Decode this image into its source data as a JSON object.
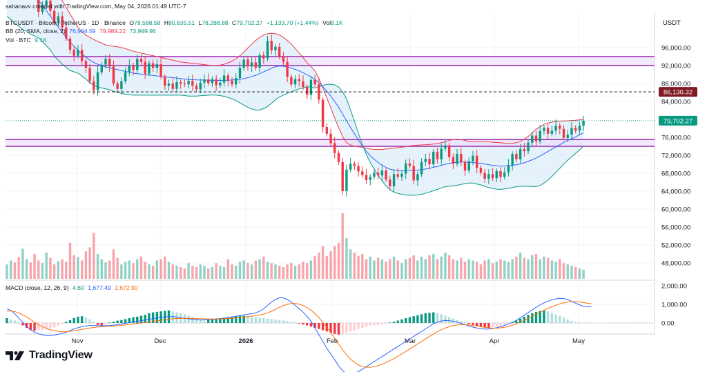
{
  "header": {
    "author_line": "sahanavv created with TradingView.com, May 04, 2026 01:49 UTC-7",
    "symbol": "BTCUSDT · Bitcoin / TetherUS · 1D · Binance",
    "o_label": "O",
    "o_value": "78,568.58",
    "h_label": "H",
    "h_value": "80,635.51",
    "l_label": "L",
    "l_value": "78,288.88",
    "c_label": "C",
    "c_value": "79,702.27",
    "change": "+1,133.70 (+1.44%)",
    "vol_label": "Vol",
    "vol_value": "9.1K",
    "bb_label": "BB (20, SMA, close, 2)",
    "bb_basis": "76,994.59",
    "bb_upper": "79,989.22",
    "bb_lower": "73,999.96",
    "vol_line_label": "Vol · BTC",
    "vol_line_value": "9.1K",
    "macd_label": "MACD (close, 12, 26, 9)",
    "macd_hist": "4.60",
    "macd_line": "1,677.49",
    "macd_signal": "1,672.90"
  },
  "axis_title": "USDT",
  "brand": "TradingView",
  "colors": {
    "up": "#089981",
    "down": "#f23645",
    "bb_basis": "#2962ff",
    "bb_band": "#f23645",
    "bb_lower": "#089981",
    "bb_fill": "#dceefa",
    "zone_fill": "#ede0fb",
    "zone_line": "#9c27b0",
    "macd_line": "#2962ff",
    "signal_line": "#ff6d00",
    "last_price_bg": "#089981",
    "alert_bg": "#801922"
  },
  "chart_data": {
    "type": "candlestick",
    "price_axis": {
      "ticks": [
        96000,
        92000,
        88000,
        84000,
        76000,
        72000,
        68000,
        64000,
        60000,
        56000,
        52000,
        48000
      ],
      "labels": [
        "96,000.00",
        "92,000.00",
        "88,000.00",
        "84,000.00",
        "76,000.00",
        "72,000.00",
        "68,000.00",
        "64,000.00",
        "60,000.00",
        "56,000.00",
        "52,000.00",
        "48,000.00"
      ]
    },
    "macd_axis": {
      "ticks": [
        2000,
        1000,
        0
      ],
      "labels": [
        "2,000.00",
        "1,000.00",
        "0.00"
      ]
    },
    "x_axis": {
      "labels": [
        "Nov",
        "Dec",
        "2026",
        "Feb",
        "Mar",
        "Apr",
        "May"
      ],
      "bold": [
        false,
        false,
        true,
        false,
        false,
        false,
        false
      ]
    },
    "price_markers": [
      {
        "value": 86130.32,
        "label": "86,130.32",
        "style": "dashed",
        "kind": "alert"
      },
      {
        "value": 79702.27,
        "label": "79,702.27",
        "style": "dotted",
        "kind": "last"
      }
    ],
    "zones": [
      {
        "from": 92000,
        "to": 94000
      },
      {
        "from": 74000,
        "to": 75500
      }
    ],
    "closes": [
      111000,
      112500,
      110000,
      108000,
      109500,
      113000,
      110800,
      107500,
      104000,
      105500,
      106500,
      104200,
      101500,
      103000,
      100500,
      98000,
      95500,
      94200,
      95500,
      93000,
      91500,
      88500,
      86500,
      90500,
      92200,
      93500,
      91800,
      88000,
      86800,
      88500,
      90500,
      92000,
      91000,
      93500,
      92800,
      90200,
      92500,
      91500,
      92300,
      89500,
      87500,
      88000,
      86800,
      88300,
      88000,
      87800,
      88600,
      87500,
      86700,
      88200,
      88900,
      88100,
      89000,
      87600,
      88200,
      89800,
      88600,
      87800,
      89200,
      91500,
      93300,
      91800,
      92700,
      91500,
      94300,
      93600,
      97500,
      95400,
      96200,
      94000,
      92800,
      89500,
      87800,
      89000,
      88500,
      87200,
      85500,
      88800,
      87800,
      84400,
      78300,
      76800,
      74700,
      72500,
      70500,
      64000,
      68800,
      70100,
      69600,
      68400,
      67600,
      66500,
      67200,
      68100,
      67500,
      68600,
      66600,
      65100,
      67800,
      67200,
      67900,
      70200,
      69600,
      66400,
      67800,
      70500,
      71200,
      70000,
      72800,
      71100,
      73500,
      74200,
      71600,
      70100,
      72300,
      70500,
      68600,
      70700,
      71900,
      69200,
      68100,
      66800,
      67800,
      66900,
      68500,
      67200,
      68200,
      69800,
      72300,
      71100,
      73400,
      72900,
      74800,
      76400,
      75100,
      77400,
      78100,
      76800,
      77500,
      78600,
      77900,
      75900,
      76600,
      78100,
      77500,
      78600,
      79700
    ],
    "bb_basis": [
      114000,
      113400,
      112700,
      111900,
      111000,
      110100,
      109000,
      107800,
      106600,
      105400,
      104200,
      103000,
      101800,
      100600,
      99400,
      98300,
      97200,
      96300,
      95400,
      94600,
      93900,
      93200,
      92700,
      92300,
      92000,
      91700,
      91500,
      91300,
      91100,
      90900,
      90700,
      90500,
      90300,
      90200,
      90100,
      90000,
      89900,
      89800,
      89700,
      89600,
      89500,
      89400,
      89300,
      89200,
      89100,
      89000,
      88900,
      88850,
      88800,
      88780,
      88760,
      88740,
      88720,
      88700,
      88700,
      88720,
      88740,
      88780,
      88850,
      88950,
      89100,
      89300,
      89550,
      89850,
      90200,
      90600,
      91000,
      91400,
      91750,
      91900,
      91850,
      91700,
      91450,
      91150,
      90800,
      90400,
      89950,
      89500,
      88900,
      88200,
      87300,
      86300,
      85200,
      84000,
      82700,
      81200,
      79700,
      78200,
      76800,
      75400,
      74100,
      72900,
      71900,
      71100,
      70400,
      69800,
      69300,
      68900,
      68700,
      68600,
      68550,
      68550,
      68600,
      68650,
      68700,
      68800,
      68950,
      69100,
      69300,
      69500,
      69750,
      70000,
      70200,
      70350,
      70450,
      70500,
      70500,
      70450,
      70400,
      70300,
      70200,
      70050,
      69900,
      69750,
      69650,
      69600,
      69600,
      69650,
      69750,
      69900,
      70100,
      70350,
      70650,
      71000,
      71400,
      71850,
      72350,
      72850,
      73350,
      73850,
      74350,
      74850,
      75300,
      75700,
      76100,
      76550,
      76990
    ],
    "bb_upper": [
      125000,
      124500,
      124000,
      123000,
      122000,
      120500,
      119000,
      117000,
      115000,
      113500,
      112000,
      110500,
      109500,
      108000,
      106500,
      105000,
      103500,
      102000,
      100500,
      99500,
      98800,
      98300,
      97800,
      97400,
      97000,
      96600,
      96400,
      96300,
      96200,
      96000,
      95800,
      95500,
      95200,
      95000,
      94800,
      94600,
      94400,
      94200,
      94000,
      93800,
      93600,
      93400,
      93200,
      93000,
      92800,
      92700,
      92600,
      92500,
      92400,
      92300,
      92200,
      92100,
      92000,
      92000,
      92100,
      92300,
      92600,
      93000,
      93500,
      94200,
      95000,
      95900,
      96800,
      97600,
      98300,
      98800,
      99100,
      99200,
      99100,
      98800,
      98300,
      97600,
      96800,
      95800,
      94800,
      93800,
      92600,
      91800,
      90800,
      89200,
      87000,
      84800,
      82600,
      80300,
      78200,
      76200,
      74800,
      74300,
      74000,
      73900,
      73800,
      73600,
      73400,
      73300,
      73300,
      73300,
      73400,
      73500,
      73600,
      73700,
      73800,
      73950,
      74100,
      74200,
      74250,
      74300,
      74350,
      74400,
      74500,
      74600,
      74800,
      75000,
      75300,
      75500,
      75600,
      75500,
      75300,
      75100,
      75000,
      75000,
      75000,
      75000,
      75000,
      74900,
      74850,
      74800,
      74700,
      74650,
      74700,
      74800,
      75100,
      75600,
      76200,
      77000,
      77800,
      78400,
      78900,
      79200,
      79400,
      79500,
      79600,
      79650,
      79700,
      79750,
      79800,
      79900,
      79990
    ],
    "bb_lower": [
      103000,
      102300,
      101400,
      100800,
      100000,
      99700,
      99000,
      98600,
      98200,
      97300,
      96400,
      95500,
      94100,
      93200,
      92300,
      91600,
      90900,
      90600,
      90300,
      89700,
      89000,
      88100,
      87600,
      87200,
      87000,
      86800,
      86600,
      86300,
      86000,
      85800,
      85600,
      85500,
      85400,
      85400,
      85400,
      85400,
      85400,
      85400,
      85400,
      85400,
      85400,
      85400,
      85400,
      85400,
      85400,
      85300,
      85200,
      85200,
      85200,
      85260,
      85320,
      85380,
      85440,
      85400,
      85300,
      85140,
      84880,
      84560,
      84200,
      83700,
      83200,
      82700,
      82300,
      82100,
      82100,
      82400,
      82900,
      83600,
      84400,
      85000,
      85400,
      85800,
      86100,
      86500,
      86800,
      87000,
      87300,
      87200,
      87000,
      87200,
      87600,
      87800,
      87800,
      87700,
      87200,
      86200,
      84600,
      82100,
      79600,
      76900,
      74400,
      72200,
      70400,
      68900,
      67500,
      66300,
      65200,
      64300,
      63800,
      63500,
      63300,
      63150,
      63100,
      63100,
      63150,
      63300,
      63550,
      63800,
      64100,
      64400,
      64700,
      65000,
      65100,
      65200,
      65300,
      65500,
      65700,
      65800,
      65800,
      65600,
      65400,
      65100,
      64800,
      64600,
      64450,
      64400,
      64500,
      64650,
      64800,
      65000,
      65100,
      65100,
      65100,
      65000,
      65000,
      65300,
      65800,
      66500,
      67300,
      68200,
      69100,
      70050,
      70900,
      71650,
      72400,
      73200,
      74000
    ],
    "volume_rel": [
      0.22,
      0.28,
      0.25,
      0.33,
      0.46,
      0.3,
      0.25,
      0.38,
      0.28,
      0.24,
      0.4,
      0.32,
      0.22,
      0.27,
      0.3,
      0.26,
      0.55,
      0.36,
      0.33,
      0.28,
      0.42,
      0.48,
      0.7,
      0.38,
      0.3,
      0.25,
      0.28,
      0.45,
      0.32,
      0.22,
      0.26,
      0.28,
      0.24,
      0.3,
      0.34,
      0.26,
      0.22,
      0.2,
      0.28,
      0.3,
      0.34,
      0.26,
      0.22,
      0.2,
      0.18,
      0.16,
      0.24,
      0.2,
      0.18,
      0.22,
      0.2,
      0.16,
      0.18,
      0.24,
      0.2,
      0.18,
      0.3,
      0.22,
      0.2,
      0.26,
      0.28,
      0.24,
      0.22,
      0.28,
      0.3,
      0.34,
      0.26,
      0.24,
      0.22,
      0.2,
      0.18,
      0.22,
      0.24,
      0.2,
      0.22,
      0.26,
      0.24,
      0.28,
      0.35,
      0.4,
      0.5,
      0.35,
      0.42,
      0.5,
      0.55,
      1.0,
      0.62,
      0.45,
      0.4,
      0.35,
      0.38,
      0.3,
      0.34,
      0.28,
      0.32,
      0.3,
      0.26,
      0.3,
      0.34,
      0.28,
      0.24,
      0.3,
      0.32,
      0.36,
      0.28,
      0.34,
      0.3,
      0.36,
      0.38,
      0.3,
      0.34,
      0.4,
      0.36,
      0.3,
      0.28,
      0.32,
      0.26,
      0.3,
      0.28,
      0.26,
      0.22,
      0.28,
      0.3,
      0.24,
      0.26,
      0.3,
      0.28,
      0.26,
      0.3,
      0.34,
      0.4,
      0.32,
      0.3,
      0.36,
      0.38,
      0.3,
      0.34,
      0.32,
      0.28,
      0.26,
      0.3,
      0.24,
      0.22,
      0.2,
      0.18,
      0.16,
      0.14
    ],
    "macd_hist_rel": [
      0.2,
      0.15,
      0.1,
      0.05,
      -0.1,
      -0.2,
      -0.28,
      -0.32,
      -0.3,
      -0.28,
      -0.25,
      -0.22,
      -0.18,
      -0.12,
      -0.05,
      0.05,
      0.12,
      0.2,
      0.26,
      0.28,
      0.22,
      0.15,
      0.05,
      -0.08,
      -0.1,
      -0.05,
      0.02,
      0.06,
      0.1,
      0.12,
      0.16,
      0.2,
      0.24,
      0.26,
      0.3,
      0.34,
      0.4,
      0.44,
      0.46,
      0.48,
      0.5,
      0.52,
      0.48,
      0.44,
      0.4,
      0.36,
      0.3,
      0.24,
      0.18,
      0.12,
      0.08,
      0.12,
      0.15,
      0.18,
      0.2,
      0.22,
      0.24,
      0.26,
      0.28,
      0.3,
      0.3,
      0.28,
      0.26,
      0.24,
      0.22,
      0.2,
      0.18,
      0.16,
      0.14,
      0.12,
      0.1,
      0.08,
      0.06,
      0.04,
      -0.02,
      -0.06,
      -0.1,
      -0.15,
      -0.2,
      -0.25,
      -0.3,
      -0.35,
      -0.4,
      -0.45,
      -0.48,
      -0.45,
      -0.4,
      -0.35,
      -0.3,
      -0.25,
      -0.2,
      -0.15,
      -0.12,
      -0.1,
      -0.08,
      -0.05,
      -0.02,
      0.02,
      0.05,
      0.1,
      0.15,
      0.2,
      0.24,
      0.28,
      0.32,
      0.36,
      0.4,
      0.42,
      0.44,
      0.4,
      0.36,
      0.3,
      0.24,
      0.18,
      0.12,
      0.08,
      0.04,
      -0.04,
      -0.08,
      -0.12,
      -0.15,
      -0.18,
      -0.2,
      -0.18,
      -0.14,
      -0.1,
      -0.06,
      -0.02,
      0.04,
      0.1,
      0.18,
      0.26,
      0.34,
      0.4,
      0.46,
      0.5,
      0.52,
      0.48,
      0.42,
      0.36,
      0.3,
      0.22,
      0.15,
      0.08,
      0.03,
      0.02,
      0.01
    ],
    "macd_line_rel": [
      0.85,
      0.75,
      0.55,
      0.3,
      0.05,
      -0.2,
      -0.4,
      -0.55,
      -0.65,
      -0.7,
      -0.75,
      -0.75,
      -0.72,
      -0.68,
      -0.62,
      -0.55,
      -0.45,
      -0.35,
      -0.28,
      -0.22,
      -0.18,
      -0.15,
      -0.15,
      -0.16,
      -0.17,
      -0.16,
      -0.15,
      -0.13,
      -0.1,
      -0.06,
      -0.02,
      0.02,
      0.06,
      0.1,
      0.14,
      0.18,
      0.22,
      0.26,
      0.3,
      0.34,
      0.36,
      0.38,
      0.38,
      0.36,
      0.32,
      0.28,
      0.25,
      0.22,
      0.2,
      0.18,
      0.18,
      0.2,
      0.22,
      0.24,
      0.26,
      0.28,
      0.32,
      0.36,
      0.4,
      0.44,
      0.48,
      0.52,
      0.56,
      0.6,
      0.7,
      0.85,
      1.05,
      1.25,
      1.4,
      1.5,
      1.5,
      1.4,
      1.25,
      1.05,
      0.85,
      0.65,
      0.4,
      0.1,
      -0.3,
      -0.7,
      -1.1,
      -1.5,
      -1.85,
      -2.2,
      -2.55,
      -2.85,
      -3.0,
      -3.05,
      -3.0,
      -2.9,
      -2.75,
      -2.6,
      -2.45,
      -2.3,
      -2.15,
      -2.0,
      -1.85,
      -1.7,
      -1.55,
      -1.4,
      -1.25,
      -1.1,
      -0.95,
      -0.8,
      -0.65,
      -0.5,
      -0.35,
      -0.2,
      -0.05,
      0.05,
      0.12,
      0.15,
      0.14,
      0.1,
      0.05,
      -0.02,
      -0.1,
      -0.18,
      -0.25,
      -0.3,
      -0.34,
      -0.36,
      -0.36,
      -0.33,
      -0.28,
      -0.22,
      -0.14,
      -0.06,
      0.04,
      0.16,
      0.3,
      0.46,
      0.62,
      0.78,
      0.94,
      1.08,
      1.2,
      1.3,
      1.38,
      1.44,
      1.47,
      1.46,
      1.4,
      1.3,
      1.18,
      1.08,
      1.0,
      0.98,
      0.98
    ],
    "signal_line_rel": [
      0.7,
      0.72,
      0.68,
      0.6,
      0.48,
      0.35,
      0.2,
      0.05,
      -0.1,
      -0.22,
      -0.32,
      -0.4,
      -0.46,
      -0.5,
      -0.52,
      -0.52,
      -0.5,
      -0.46,
      -0.42,
      -0.38,
      -0.34,
      -0.3,
      -0.27,
      -0.24,
      -0.22,
      -0.2,
      -0.19,
      -0.18,
      -0.16,
      -0.14,
      -0.12,
      -0.09,
      -0.06,
      -0.03,
      0.0,
      0.04,
      0.07,
      0.1,
      0.13,
      0.16,
      0.19,
      0.22,
      0.25,
      0.27,
      0.28,
      0.28,
      0.28,
      0.27,
      0.26,
      0.25,
      0.24,
      0.24,
      0.24,
      0.24,
      0.24,
      0.25,
      0.26,
      0.28,
      0.3,
      0.32,
      0.35,
      0.38,
      0.41,
      0.44,
      0.48,
      0.53,
      0.6,
      0.7,
      0.82,
      0.94,
      1.04,
      1.12,
      1.16,
      1.16,
      1.12,
      1.04,
      0.92,
      0.76,
      0.56,
      0.32,
      0.04,
      -0.26,
      -0.58,
      -0.92,
      -1.26,
      -1.6,
      -1.9,
      -2.15,
      -2.35,
      -2.5,
      -2.6,
      -2.64,
      -2.64,
      -2.6,
      -2.54,
      -2.46,
      -2.36,
      -2.24,
      -2.12,
      -1.98,
      -1.84,
      -1.7,
      -1.55,
      -1.4,
      -1.25,
      -1.1,
      -0.95,
      -0.8,
      -0.65,
      -0.52,
      -0.4,
      -0.3,
      -0.22,
      -0.16,
      -0.12,
      -0.1,
      -0.1,
      -0.12,
      -0.15,
      -0.18,
      -0.22,
      -0.26,
      -0.29,
      -0.31,
      -0.31,
      -0.29,
      -0.25,
      -0.2,
      -0.13,
      -0.05,
      0.05,
      0.16,
      0.28,
      0.4,
      0.52,
      0.64,
      0.76,
      0.87,
      0.97,
      1.06,
      1.14,
      1.2,
      1.25,
      1.27,
      1.27,
      1.25,
      1.22,
      1.18,
      1.15
    ]
  }
}
